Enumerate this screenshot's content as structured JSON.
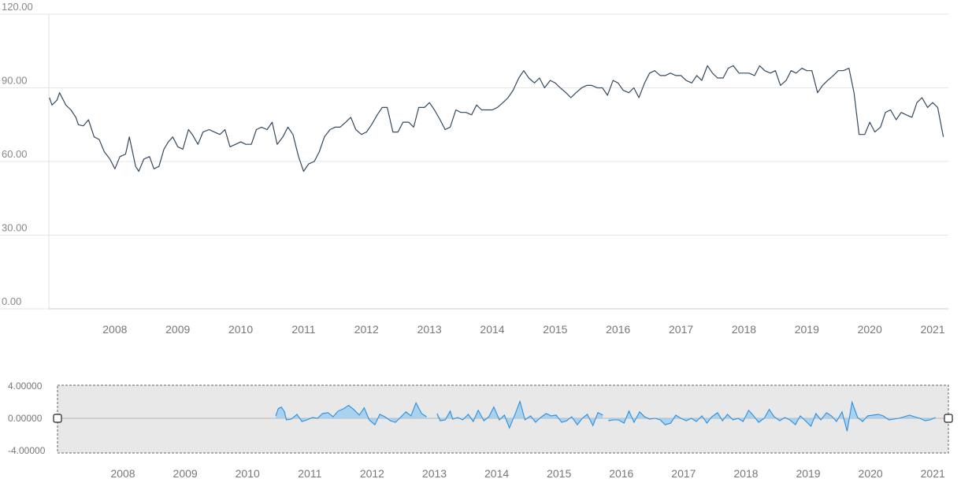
{
  "chart_data": [
    {
      "type": "line",
      "name": "main-chart",
      "y_ticks": [
        "0.00",
        "30.00",
        "60.00",
        "90.00",
        "120.00"
      ],
      "y_tick_values": [
        0,
        30,
        60,
        90,
        120
      ],
      "ylim": [
        0,
        120
      ],
      "x_ticks": [
        "2008",
        "2009",
        "2010",
        "2011",
        "2012",
        "2013",
        "2014",
        "2015",
        "2016",
        "2017",
        "2018",
        "2019",
        "2020",
        "2021"
      ],
      "x_tick_values": [
        2008,
        2009,
        2010,
        2011,
        2012,
        2013,
        2014,
        2015,
        2016,
        2017,
        2018,
        2019,
        2020,
        2021
      ],
      "xlim": [
        2007.45,
        2021.75
      ],
      "grid": true,
      "line_color": "#34495e",
      "points": [
        [
          2007.46,
          86
        ],
        [
          2007.5,
          83
        ],
        [
          2007.58,
          85
        ],
        [
          2007.62,
          88
        ],
        [
          2007.72,
          83
        ],
        [
          2007.8,
          81
        ],
        [
          2007.88,
          78
        ],
        [
          2007.92,
          75
        ],
        [
          2008.0,
          74.5
        ],
        [
          2008.08,
          77
        ],
        [
          2008.17,
          70
        ],
        [
          2008.25,
          69
        ],
        [
          2008.33,
          64
        ],
        [
          2008.42,
          61
        ],
        [
          2008.5,
          57
        ],
        [
          2008.58,
          62
        ],
        [
          2008.67,
          63
        ],
        [
          2008.73,
          70
        ],
        [
          2008.83,
          58
        ],
        [
          2008.88,
          56
        ],
        [
          2008.96,
          61
        ],
        [
          2009.05,
          62
        ],
        [
          2009.12,
          57
        ],
        [
          2009.2,
          58
        ],
        [
          2009.28,
          65
        ],
        [
          2009.35,
          68
        ],
        [
          2009.42,
          70
        ],
        [
          2009.5,
          66
        ],
        [
          2009.58,
          65
        ],
        [
          2009.67,
          73
        ],
        [
          2009.73,
          71
        ],
        [
          2009.82,
          67
        ],
        [
          2009.9,
          72
        ],
        [
          2010.0,
          73
        ],
        [
          2010.08,
          72
        ],
        [
          2010.17,
          71
        ],
        [
          2010.25,
          73
        ],
        [
          2010.33,
          66
        ],
        [
          2010.42,
          67
        ],
        [
          2010.5,
          68
        ],
        [
          2010.58,
          67
        ],
        [
          2010.67,
          67
        ],
        [
          2010.75,
          73
        ],
        [
          2010.83,
          74
        ],
        [
          2010.92,
          73
        ],
        [
          2011.0,
          76
        ],
        [
          2011.08,
          67
        ],
        [
          2011.17,
          70
        ],
        [
          2011.25,
          74
        ],
        [
          2011.33,
          71
        ],
        [
          2011.42,
          62
        ],
        [
          2011.5,
          56
        ],
        [
          2011.58,
          59
        ],
        [
          2011.67,
          60
        ],
        [
          2011.75,
          64
        ],
        [
          2011.83,
          70
        ],
        [
          2011.92,
          73
        ],
        [
          2012.0,
          74
        ],
        [
          2012.08,
          74
        ],
        [
          2012.17,
          76
        ],
        [
          2012.25,
          78
        ],
        [
          2012.33,
          73
        ],
        [
          2012.42,
          71
        ],
        [
          2012.5,
          72
        ],
        [
          2012.58,
          75
        ],
        [
          2012.67,
          79
        ],
        [
          2012.75,
          82
        ],
        [
          2012.83,
          82
        ],
        [
          2012.92,
          72
        ],
        [
          2013.0,
          72
        ],
        [
          2013.08,
          76
        ],
        [
          2013.17,
          76
        ],
        [
          2013.25,
          74
        ],
        [
          2013.33,
          82
        ],
        [
          2013.42,
          82
        ],
        [
          2013.5,
          84
        ],
        [
          2013.58,
          81
        ],
        [
          2013.67,
          77
        ],
        [
          2013.75,
          73
        ],
        [
          2013.83,
          74
        ],
        [
          2013.92,
          81
        ],
        [
          2014.0,
          80
        ],
        [
          2014.08,
          80
        ],
        [
          2014.17,
          79
        ],
        [
          2014.25,
          83
        ],
        [
          2014.33,
          81
        ],
        [
          2014.42,
          81
        ],
        [
          2014.5,
          81
        ],
        [
          2014.58,
          82
        ],
        [
          2014.67,
          84
        ],
        [
          2014.75,
          86
        ],
        [
          2014.83,
          89
        ],
        [
          2014.92,
          94
        ],
        [
          2015.0,
          97
        ],
        [
          2015.08,
          94
        ],
        [
          2015.17,
          92
        ],
        [
          2015.25,
          94
        ],
        [
          2015.33,
          90
        ],
        [
          2015.42,
          93
        ],
        [
          2015.5,
          92
        ],
        [
          2015.58,
          90
        ],
        [
          2015.67,
          88
        ],
        [
          2015.75,
          86
        ],
        [
          2015.83,
          88
        ],
        [
          2015.92,
          90
        ],
        [
          2016.0,
          91
        ],
        [
          2016.08,
          91
        ],
        [
          2016.17,
          90
        ],
        [
          2016.25,
          90
        ],
        [
          2016.33,
          87
        ],
        [
          2016.42,
          93
        ],
        [
          2016.5,
          92
        ],
        [
          2016.58,
          89
        ],
        [
          2016.67,
          88
        ],
        [
          2016.75,
          90
        ],
        [
          2016.83,
          86
        ],
        [
          2016.92,
          92
        ],
        [
          2017.0,
          96
        ],
        [
          2017.08,
          97
        ],
        [
          2017.17,
          95
        ],
        [
          2017.25,
          95
        ],
        [
          2017.33,
          96
        ],
        [
          2017.42,
          95
        ],
        [
          2017.5,
          95
        ],
        [
          2017.58,
          93
        ],
        [
          2017.67,
          92
        ],
        [
          2017.75,
          95
        ],
        [
          2017.83,
          93
        ],
        [
          2017.92,
          99
        ],
        [
          2018.0,
          96
        ],
        [
          2018.08,
          94
        ],
        [
          2018.17,
          94
        ],
        [
          2018.25,
          98
        ],
        [
          2018.33,
          99
        ],
        [
          2018.42,
          96
        ],
        [
          2018.5,
          96
        ],
        [
          2018.58,
          96
        ],
        [
          2018.67,
          95
        ],
        [
          2018.75,
          99
        ],
        [
          2018.83,
          97
        ],
        [
          2018.92,
          96
        ],
        [
          2019.0,
          97
        ],
        [
          2019.08,
          91
        ],
        [
          2019.17,
          93
        ],
        [
          2019.25,
          97
        ],
        [
          2019.33,
          96
        ],
        [
          2019.42,
          98
        ],
        [
          2019.5,
          97
        ],
        [
          2019.58,
          97
        ],
        [
          2019.67,
          88
        ],
        [
          2019.75,
          91
        ],
        [
          2019.83,
          93
        ],
        [
          2019.92,
          95
        ],
        [
          2020.0,
          97
        ],
        [
          2020.08,
          97
        ],
        [
          2020.17,
          98
        ],
        [
          2020.25,
          88
        ],
        [
          2020.33,
          71
        ],
        [
          2020.42,
          71
        ],
        [
          2020.5,
          76
        ],
        [
          2020.58,
          72
        ],
        [
          2020.67,
          74
        ],
        [
          2020.75,
          80
        ],
        [
          2020.83,
          81
        ],
        [
          2020.92,
          77
        ],
        [
          2021.0,
          80
        ],
        [
          2021.08,
          79
        ],
        [
          2021.17,
          78
        ],
        [
          2021.25,
          84
        ],
        [
          2021.33,
          86
        ],
        [
          2021.42,
          82
        ],
        [
          2021.5,
          84
        ],
        [
          2021.58,
          82
        ],
        [
          2021.67,
          70
        ]
      ]
    },
    {
      "type": "area",
      "name": "navigator",
      "y_ticks": [
        "-4.00000",
        "0.00000",
        "4.00000"
      ],
      "y_tick_values": [
        -4,
        0,
        4
      ],
      "ylim": [
        -4.2,
        4.2
      ],
      "x_ticks": [
        "2008",
        "2009",
        "2010",
        "2011",
        "2012",
        "2013",
        "2014",
        "2015",
        "2016",
        "2017",
        "2018",
        "2019",
        "2020",
        "2021"
      ],
      "x_tick_values": [
        2008,
        2009,
        2010,
        2011,
        2012,
        2013,
        2014,
        2015,
        2016,
        2017,
        2018,
        2019,
        2020,
        2021
      ],
      "xlim": [
        2007.45,
        2021.75
      ],
      "grid": false,
      "line_color": "#2b8fde",
      "fill_color": "#9fcdee",
      "background_color": "#e8e8e8",
      "segments": [
        [
          [
            2011.08,
            0.3
          ],
          [
            2011.12,
            1.2
          ],
          [
            2011.17,
            1.4
          ],
          [
            2011.22,
            0.8
          ],
          [
            2011.25,
            -0.2
          ],
          [
            2011.33,
            -0.1
          ],
          [
            2011.42,
            0.5
          ],
          [
            2011.5,
            -0.4
          ],
          [
            2011.58,
            -0.2
          ],
          [
            2011.67,
            0.1
          ],
          [
            2011.75,
            0.0
          ],
          [
            2011.83,
            0.6
          ],
          [
            2011.92,
            0.7
          ],
          [
            2012.0,
            0.2
          ],
          [
            2012.08,
            0.9
          ],
          [
            2012.17,
            1.2
          ],
          [
            2012.25,
            1.6
          ],
          [
            2012.33,
            1.1
          ],
          [
            2012.42,
            0.4
          ],
          [
            2012.5,
            1.3
          ],
          [
            2012.58,
            -0.2
          ],
          [
            2012.67,
            -0.8
          ],
          [
            2012.75,
            0.5
          ],
          [
            2012.83,
            0.2
          ],
          [
            2012.92,
            -0.3
          ],
          [
            2013.0,
            -0.5
          ],
          [
            2013.08,
            0.1
          ],
          [
            2013.17,
            0.8
          ],
          [
            2013.25,
            0.3
          ],
          [
            2013.33,
            1.9
          ],
          [
            2013.42,
            0.6
          ],
          [
            2013.5,
            0.2
          ]
        ],
        [
          [
            2013.67,
            0.6
          ],
          [
            2013.72,
            -0.3
          ],
          [
            2013.8,
            -0.2
          ],
          [
            2013.88,
            0.9
          ],
          [
            2013.92,
            -0.1
          ],
          [
            2014.0,
            0.1
          ],
          [
            2014.08,
            -0.2
          ],
          [
            2014.17,
            0.5
          ],
          [
            2014.25,
            -0.4
          ],
          [
            2014.33,
            1.0
          ],
          [
            2014.42,
            -0.3
          ],
          [
            2014.5,
            0.2
          ],
          [
            2014.58,
            1.4
          ],
          [
            2014.67,
            -0.2
          ],
          [
            2014.75,
            0.4
          ],
          [
            2014.83,
            -1.2
          ],
          [
            2014.92,
            0.5
          ],
          [
            2015.0,
            2.1
          ],
          [
            2015.08,
            -0.2
          ],
          [
            2015.17,
            0.3
          ],
          [
            2015.25,
            -0.5
          ],
          [
            2015.33,
            0.1
          ],
          [
            2015.42,
            0.6
          ],
          [
            2015.5,
            0.3
          ],
          [
            2015.58,
            0.4
          ],
          [
            2015.67,
            -0.5
          ],
          [
            2015.75,
            -0.3
          ],
          [
            2015.83,
            0.2
          ],
          [
            2015.92,
            -0.8
          ],
          [
            2016.0,
            0.0
          ],
          [
            2016.08,
            0.5
          ],
          [
            2016.17,
            -0.9
          ],
          [
            2016.25,
            0.7
          ],
          [
            2016.33,
            0.4
          ]
        ],
        [
          [
            2016.42,
            -0.3
          ],
          [
            2016.5,
            -0.2
          ],
          [
            2016.58,
            -0.2
          ],
          [
            2016.67,
            -0.6
          ],
          [
            2016.75,
            0.9
          ],
          [
            2016.83,
            -0.5
          ],
          [
            2016.92,
            0.8
          ],
          [
            2017.0,
            0.2
          ],
          [
            2017.08,
            -0.1
          ],
          [
            2017.17,
            0.0
          ],
          [
            2017.25,
            -0.2
          ],
          [
            2017.33,
            -0.8
          ],
          [
            2017.42,
            -0.6
          ],
          [
            2017.5,
            0.4
          ],
          [
            2017.58,
            0.0
          ],
          [
            2017.67,
            -0.3
          ],
          [
            2017.75,
            0.0
          ],
          [
            2017.83,
            -0.4
          ],
          [
            2017.92,
            0.3
          ],
          [
            2018.0,
            -0.6
          ],
          [
            2018.08,
            0.2
          ],
          [
            2018.17,
            0.7
          ],
          [
            2018.25,
            -0.3
          ],
          [
            2018.33,
            0.5
          ],
          [
            2018.42,
            -0.2
          ],
          [
            2018.5,
            0.0
          ],
          [
            2018.58,
            -0.4
          ],
          [
            2018.67,
            1.0
          ],
          [
            2018.75,
            0.3
          ],
          [
            2018.83,
            -0.5
          ],
          [
            2018.92,
            0.0
          ],
          [
            2019.0,
            1.1
          ],
          [
            2019.08,
            0.2
          ],
          [
            2019.17,
            -0.3
          ],
          [
            2019.25,
            0.1
          ],
          [
            2019.33,
            -0.2
          ],
          [
            2019.42,
            -0.8
          ],
          [
            2019.5,
            0.3
          ],
          [
            2019.58,
            -0.3
          ],
          [
            2019.67,
            -1.0
          ],
          [
            2019.75,
            0.6
          ],
          [
            2019.83,
            -0.2
          ],
          [
            2019.92,
            0.7
          ],
          [
            2020.0,
            0.3
          ],
          [
            2020.08,
            -0.4
          ],
          [
            2020.17,
            0.8
          ],
          [
            2020.25,
            -1.6
          ],
          [
            2020.33,
            2.0
          ],
          [
            2020.42,
            0.1
          ],
          [
            2020.5,
            -0.4
          ],
          [
            2020.58,
            0.3
          ],
          [
            2020.67,
            0.4
          ],
          [
            2020.75,
            0.5
          ],
          [
            2020.83,
            0.3
          ],
          [
            2020.92,
            -0.2
          ],
          [
            2021.0,
            -0.1
          ],
          [
            2021.08,
            0.0
          ],
          [
            2021.17,
            0.2
          ],
          [
            2021.25,
            0.4
          ],
          [
            2021.33,
            0.2
          ],
          [
            2021.42,
            0.0
          ],
          [
            2021.5,
            -0.3
          ],
          [
            2021.58,
            -0.2
          ],
          [
            2021.67,
            0.1
          ]
        ]
      ]
    }
  ]
}
